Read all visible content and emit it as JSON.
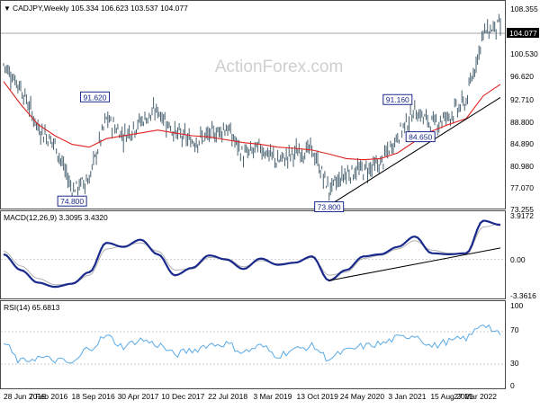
{
  "header": {
    "symbol_line": "CADJPY,Weekly  105.334 106.623 103.537 104.077",
    "watermark": "ActionForex.com"
  },
  "price_panel": {
    "ticks": [
      "108.355",
      "104.077",
      "100.530",
      "96.620",
      "92.710",
      "88.800",
      "84.890",
      "80.980",
      "77.070",
      "73.255"
    ],
    "last_price_label": "104.077",
    "annotations": [
      "91.620",
      "74.800",
      "73.800",
      "91.160",
      "84.650"
    ]
  },
  "macd_panel": {
    "label": "MACD(12,26,9) 3.3095 3.4320",
    "ticks": [
      "3.9172",
      "0.00",
      "-3.3616"
    ]
  },
  "rsi_panel": {
    "label": "RSI(14) 65.6813",
    "ticks": [
      "100",
      "70",
      "30",
      "0"
    ]
  },
  "x_axis": {
    "labels": [
      "28 Jun 2015",
      "7 Feb 2016",
      "18 Sep 2016",
      "30 Apr 2017",
      "10 Dec 2017",
      "22 Jul 2018",
      "3 Mar 2019",
      "13 Oct 2019",
      "24 May 2020",
      "3 Jan 2021",
      "15 Aug 2021",
      "27 Mar 2022"
    ]
  },
  "colors": {
    "price_bars": "#47606f",
    "moving_average": "#e02020",
    "macd_line": "#1a2a8c",
    "signal_line": "#b0b0b0",
    "trendline": "#000000",
    "rsi_line": "#5aaae6",
    "annotation_border": "#1a2a8c"
  },
  "chart_data": [
    {
      "type": "line",
      "subtype": "candlestick-ohlc",
      "title": "CADJPY,Weekly",
      "ohlc_last": {
        "open": 105.334,
        "high": 106.623,
        "low": 103.537,
        "close": 104.077
      },
      "ylim": [
        73.255,
        108.355
      ],
      "x": [
        "2015-06",
        "2015-09",
        "2016-01",
        "2016-03",
        "2016-06",
        "2016-10",
        "2017-01",
        "2017-04",
        "2017-07",
        "2017-10",
        "2018-01",
        "2018-04",
        "2018-07",
        "2018-10",
        "2019-01",
        "2019-04",
        "2019-08",
        "2019-10",
        "2019-12",
        "2020-03",
        "2020-06",
        "2020-09",
        "2020-12",
        "2021-03",
        "2021-06",
        "2021-09",
        "2021-12",
        "2022-02",
        "2022-04",
        "2022-05"
      ],
      "series": [
        {
          "name": "",
          "values": [
            98.5,
            94.5,
            87.5,
            84.5,
            76.5,
            78.5,
            89.0,
            86.0,
            88.5,
            90.5,
            86.5,
            85.0,
            86.0,
            87.5,
            82.5,
            84.0,
            81.5,
            83.0,
            83.5,
            76.5,
            79.5,
            80.0,
            81.0,
            86.0,
            90.5,
            88.0,
            89.5,
            92.0,
            104.0,
            105.5
          ]
        },
        {
          "name": "",
          "values": [
            95.5,
            91.5,
            88.0,
            86.0,
            84.5,
            84.0,
            85.5,
            86.0,
            86.5,
            87.0,
            86.5,
            86.0,
            85.8,
            85.3,
            84.8,
            84.5,
            84.0,
            83.8,
            83.5,
            82.8,
            82.0,
            81.8,
            82.0,
            83.0,
            85.0,
            86.8,
            88.0,
            89.0,
            93.0,
            95.0
          ]
        }
      ],
      "annotations": [
        {
          "text": "91.620",
          "x": "2016-11",
          "y": 91.62
        },
        {
          "text": "74.800",
          "x": "2016-06",
          "y": 74.8
        },
        {
          "text": "73.800",
          "x": "2020-03",
          "y": 73.8
        },
        {
          "text": "91.160",
          "x": "2021-03",
          "y": 91.16
        },
        {
          "text": "84.650",
          "x": "2021-07",
          "y": 84.65
        }
      ],
      "trendline": {
        "from": {
          "x": "2020-03",
          "y": 73.8
        },
        "to": {
          "x": "2022-05",
          "y": 92.7
        }
      }
    },
    {
      "type": "line",
      "title": "MACD(12,26,9)",
      "ylim": [
        -3.3616,
        3.9172
      ],
      "current": {
        "macd": 3.3095,
        "signal": 3.432
      },
      "x": [
        "2015-06",
        "2015-09",
        "2016-01",
        "2016-03",
        "2016-06",
        "2016-10",
        "2017-01",
        "2017-04",
        "2017-07",
        "2017-10",
        "2018-01",
        "2018-04",
        "2018-07",
        "2018-10",
        "2019-01",
        "2019-04",
        "2019-08",
        "2019-10",
        "2019-12",
        "2020-03",
        "2020-06",
        "2020-09",
        "2020-12",
        "2021-03",
        "2021-06",
        "2021-09",
        "2021-12",
        "2022-02",
        "2022-04",
        "2022-05"
      ],
      "series": [
        {
          "name": "MACD",
          "values": [
            0.5,
            -1.0,
            -2.2,
            -2.6,
            -2.3,
            -1.2,
            1.6,
            1.2,
            1.9,
            0.5,
            -1.5,
            -0.8,
            0.4,
            0.0,
            -0.9,
            0.1,
            -0.5,
            -0.3,
            0.3,
            -2.0,
            -1.0,
            0.3,
            0.5,
            1.2,
            2.2,
            0.6,
            0.5,
            0.6,
            3.7,
            3.3
          ]
        },
        {
          "name": "Signal",
          "values": [
            0.8,
            -0.6,
            -1.8,
            -2.4,
            -2.3,
            -1.5,
            1.0,
            1.3,
            1.6,
            0.8,
            -1.0,
            -0.9,
            0.2,
            0.1,
            -0.7,
            -0.1,
            -0.4,
            -0.3,
            0.2,
            -1.5,
            -1.2,
            0.1,
            0.4,
            1.0,
            1.8,
            0.9,
            0.6,
            0.5,
            3.1,
            3.4
          ]
        }
      ],
      "trendline": {
        "from": {
          "x": "2020-03",
          "y": -2.0
        },
        "to": {
          "x": "2022-05",
          "y": 1.1
        }
      }
    },
    {
      "type": "line",
      "title": "RSI(14)",
      "ylim": [
        0,
        100
      ],
      "current": 65.6813,
      "x": [
        "2015-06",
        "2015-09",
        "2016-01",
        "2016-03",
        "2016-06",
        "2016-10",
        "2017-01",
        "2017-04",
        "2017-07",
        "2017-10",
        "2018-01",
        "2018-04",
        "2018-07",
        "2018-10",
        "2019-01",
        "2019-04",
        "2019-08",
        "2019-10",
        "2019-12",
        "2020-03",
        "2020-06",
        "2020-09",
        "2020-12",
        "2021-03",
        "2021-06",
        "2021-09",
        "2021-12",
        "2022-02",
        "2022-04",
        "2022-05"
      ],
      "series": [
        {
          "name": "",
          "values": [
            55,
            33,
            38,
            35,
            31,
            50,
            64,
            52,
            60,
            54,
            42,
            47,
            54,
            55,
            45,
            52,
            41,
            48,
            52,
            37,
            46,
            52,
            55,
            62,
            66,
            52,
            58,
            62,
            80,
            66
          ]
        }
      ]
    }
  ]
}
